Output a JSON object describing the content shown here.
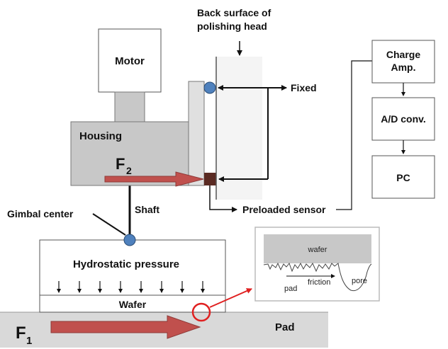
{
  "labels": {
    "back_surface_line1": "Back surface of",
    "back_surface_line2": "polishing head",
    "motor": "Motor",
    "housing": "Housing",
    "f2_main": "F",
    "f2_sub": "2",
    "fixed": "Fixed",
    "charge_amp_line1": "Charge",
    "charge_amp_line2": "Amp.",
    "ad_conv": "A/D conv.",
    "pc": "PC",
    "shaft": "Shaft",
    "gimbal_center": "Gimbal center",
    "preloaded_sensor": "Preloaded sensor",
    "hydrostatic_pressure": "Hydrostatic pressure",
    "wafer": "Wafer",
    "pad": "Pad",
    "f1_main": "F",
    "f1_sub": "1"
  },
  "inset": {
    "wafer": "wafer",
    "pad": "pad",
    "friction": "friction",
    "pore": "pore"
  },
  "colors": {
    "housing": "#c8c8c8",
    "pad": "#d9d9d9",
    "force_arrow": "#c0504d",
    "sensor": "#5a2a22",
    "gimbal": "#4f81bd",
    "highlight_circle": "#e02020",
    "inset_wafer": "#c8c8c8"
  }
}
